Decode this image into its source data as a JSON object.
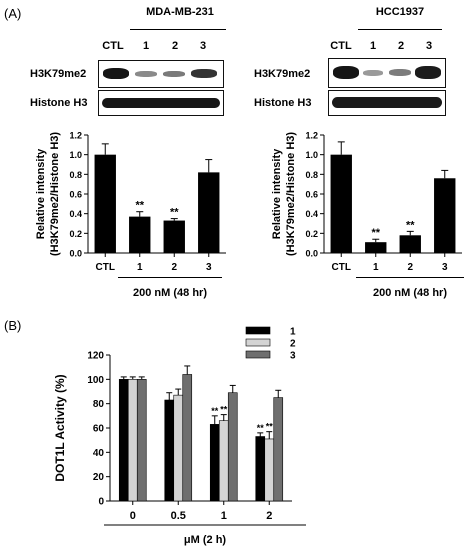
{
  "panelA": {
    "label": "(A)",
    "cells": [
      {
        "name": "MDA-MB-231",
        "lanes": [
          "CTL",
          "1",
          "2",
          "3"
        ]
      },
      {
        "name": "HCC1937",
        "lanes": [
          "CTL",
          "1",
          "2",
          "3"
        ]
      }
    ],
    "blot_rows": [
      "H3K79me2",
      "Histone H3"
    ],
    "treatment_label": "200 nM (48 hr)"
  },
  "panelB": {
    "label": "(B)"
  },
  "colors": {
    "bar_black": "#000000",
    "bar_light": "#d4d4d4",
    "bar_dark": "#6f6f6f"
  },
  "chart_data": [
    {
      "type": "bar",
      "cell": "MDA-MB-231",
      "categories": [
        "CTL",
        "1",
        "2",
        "3"
      ],
      "values": [
        1.0,
        0.37,
        0.33,
        0.82
      ],
      "errors": [
        0.11,
        0.05,
        0.02,
        0.13
      ],
      "significance": [
        "",
        "**",
        "**",
        ""
      ],
      "ylabel": [
        "Relative intensity",
        "(H3K79me2/Histone H3)"
      ],
      "xlabel": "200 nM (48 hr)",
      "ylim": [
        0,
        1.2
      ],
      "yticks": [
        "0.0",
        "0.2",
        "0.4",
        "0.6",
        "0.8",
        "1.0",
        "1.2"
      ]
    },
    {
      "type": "bar",
      "cell": "HCC1937",
      "categories": [
        "CTL",
        "1",
        "2",
        "3"
      ],
      "values": [
        1.0,
        0.11,
        0.18,
        0.76
      ],
      "errors": [
        0.13,
        0.03,
        0.04,
        0.08
      ],
      "significance": [
        "",
        "**",
        "**",
        ""
      ],
      "ylabel": [
        "Relative intensity",
        "(H3K79me2/Histone H3)"
      ],
      "xlabel": "200 nM (48 hr)",
      "ylim": [
        0,
        1.2
      ],
      "yticks": [
        "0.0",
        "0.2",
        "0.4",
        "0.6",
        "0.8",
        "1.0",
        "1.2"
      ]
    },
    {
      "type": "bar",
      "categories": [
        "0",
        "0.5",
        "1",
        "2"
      ],
      "series": [
        {
          "name": "1",
          "values": [
            100,
            83,
            63,
            53
          ],
          "errors": [
            2,
            6,
            7,
            3
          ],
          "significance": [
            "",
            "",
            "**",
            "**"
          ]
        },
        {
          "name": "2",
          "values": [
            100,
            87,
            66,
            51
          ],
          "errors": [
            2,
            5,
            5,
            6
          ],
          "significance": [
            "",
            "",
            "**",
            "**"
          ]
        },
        {
          "name": "3",
          "values": [
            100,
            104,
            89,
            85
          ],
          "errors": [
            2,
            7,
            6,
            6
          ],
          "significance": [
            "",
            "",
            "",
            ""
          ]
        }
      ],
      "ylabel": "DOT1L Activity (%)",
      "xlabel": "μM (2 h)",
      "ylim": [
        0,
        120
      ],
      "yticks": [
        "0",
        "20",
        "40",
        "60",
        "80",
        "100",
        "120"
      ],
      "legend_position": "top-right"
    }
  ]
}
